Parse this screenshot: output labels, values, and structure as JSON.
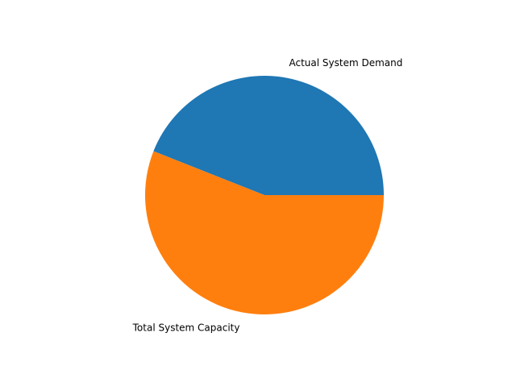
{
  "chart_data": {
    "type": "pie",
    "title": "",
    "labels": [
      "Actual System Demand",
      "Total System Capacity"
    ],
    "values": [
      44,
      56
    ],
    "colors": [
      "#1f77b4",
      "#ff7f0e"
    ],
    "start_angle_deg": 0,
    "direction": "counterclockwise",
    "legend": "none",
    "label_placement": "outside"
  }
}
